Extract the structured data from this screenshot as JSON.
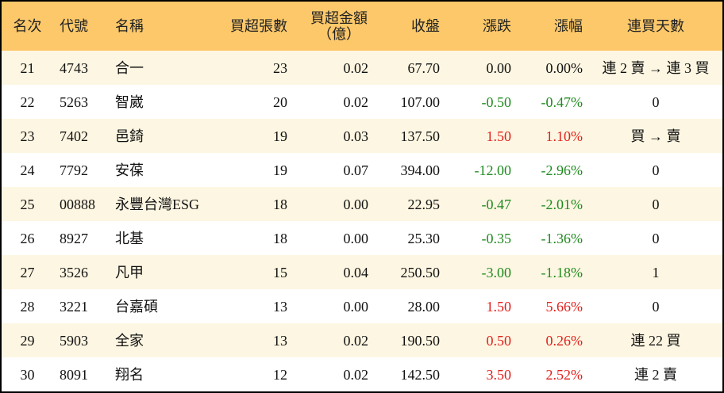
{
  "table": {
    "headers": [
      "名次",
      "代號",
      "名稱",
      "買超張數",
      [
        "買超金額",
        "（億）"
      ],
      "收盤",
      "漲跌",
      "漲幅",
      "連買天數"
    ],
    "rows": [
      [
        "21",
        "4743",
        "合一",
        "23",
        "0.02",
        "67.70",
        "0.00",
        "0.00%",
        "連 2 賣 → 連 3 買"
      ],
      [
        "22",
        "5263",
        "智崴",
        "20",
        "0.02",
        "107.00",
        "-0.50",
        "-0.47%",
        "0"
      ],
      [
        "23",
        "7402",
        "邑錡",
        "19",
        "0.03",
        "137.50",
        "1.50",
        "1.10%",
        "買 → 賣"
      ],
      [
        "24",
        "7792",
        "安葆",
        "19",
        "0.07",
        "394.00",
        "-12.00",
        "-2.96%",
        "0"
      ],
      [
        "25",
        "00888",
        "永豐台灣ESG",
        "18",
        "0.00",
        "22.95",
        "-0.47",
        "-2.01%",
        "0"
      ],
      [
        "26",
        "8927",
        "北基",
        "18",
        "0.00",
        "25.30",
        "-0.35",
        "-1.36%",
        "0"
      ],
      [
        "27",
        "3526",
        "凡甲",
        "15",
        "0.04",
        "250.50",
        "-3.00",
        "-1.18%",
        "1"
      ],
      [
        "28",
        "3221",
        "台嘉碩",
        "13",
        "0.00",
        "28.00",
        "1.50",
        "5.66%",
        "0"
      ],
      [
        "29",
        "5903",
        "全家",
        "13",
        "0.02",
        "190.50",
        "0.50",
        "0.26%",
        "連 22 買"
      ],
      [
        "30",
        "8091",
        "翔名",
        "12",
        "0.02",
        "142.50",
        "3.50",
        "2.52%",
        "連 2 賣"
      ]
    ]
  }
}
